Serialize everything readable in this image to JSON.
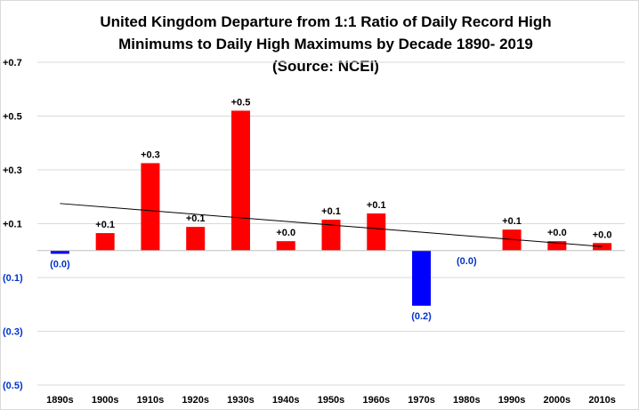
{
  "chart_data": {
    "type": "bar",
    "title_lines": [
      "United Kingdom Departure  from 1:1 Ratio of Daily Record High",
      "Minimums  to Daily High Maximums  by Decade 1890- 2019",
      "(Source: NCEI)"
    ],
    "xlabel": "",
    "ylabel": "",
    "categories": [
      "1890s",
      "1900s",
      "1910s",
      "1920s",
      "1930s",
      "1940s",
      "1950s",
      "1960s",
      "1970s",
      "1980s",
      "1990s",
      "2000s",
      "2010s"
    ],
    "values": [
      -0.012,
      0.065,
      0.325,
      0.088,
      0.52,
      0.035,
      0.115,
      0.138,
      -0.205,
      0.0,
      0.078,
      0.035,
      0.028
    ],
    "data_labels": [
      "(0.0)",
      "+0.1",
      "+0.3",
      "+0.1",
      "+0.5",
      "+0.0",
      "+0.1",
      "+0.1",
      "(0.2)",
      "(0.0)",
      "+0.1",
      "+0.0",
      "+0.0"
    ],
    "ylim": [
      -0.5,
      0.7
    ],
    "yticks": [
      0.7,
      0.5,
      0.3,
      0.1,
      -0.1,
      -0.3,
      -0.5
    ],
    "ytick_labels": [
      "+0.7",
      "+0.5",
      "+0.3",
      "+0.1",
      "(0.1)",
      "(0.3)",
      "(0.5)"
    ],
    "trendline": {
      "start": 0.175,
      "end": 0.015
    },
    "grid": "horizontal",
    "legend": "none",
    "colors": {
      "positive": "#ff0000",
      "negative": "#0000ff",
      "positive_label": "#000000",
      "negative_label": "#0033cc",
      "gridline": "#d9d9d9",
      "trendline": "#000000"
    }
  }
}
